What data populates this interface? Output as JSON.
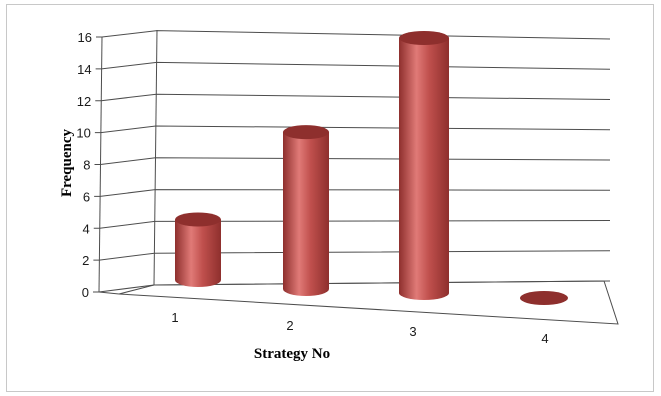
{
  "chart_data": {
    "type": "bar",
    "style": "3d-cylinder",
    "categories": [
      "1",
      "2",
      "3",
      "4"
    ],
    "values": [
      4,
      10,
      16,
      0
    ],
    "xlabel": "Strategy No",
    "ylabel": "Frequency",
    "ylim": [
      0,
      16
    ],
    "yticks": [
      "0",
      "2",
      "4",
      "6",
      "8",
      "10",
      "12",
      "14",
      "16"
    ],
    "grid": true,
    "legend": "none",
    "colors": {
      "bar": "#c0504d",
      "bar_dark": "#8e2f2d",
      "bar_light": "#e07a77",
      "grid": "#4d4d4d"
    }
  }
}
